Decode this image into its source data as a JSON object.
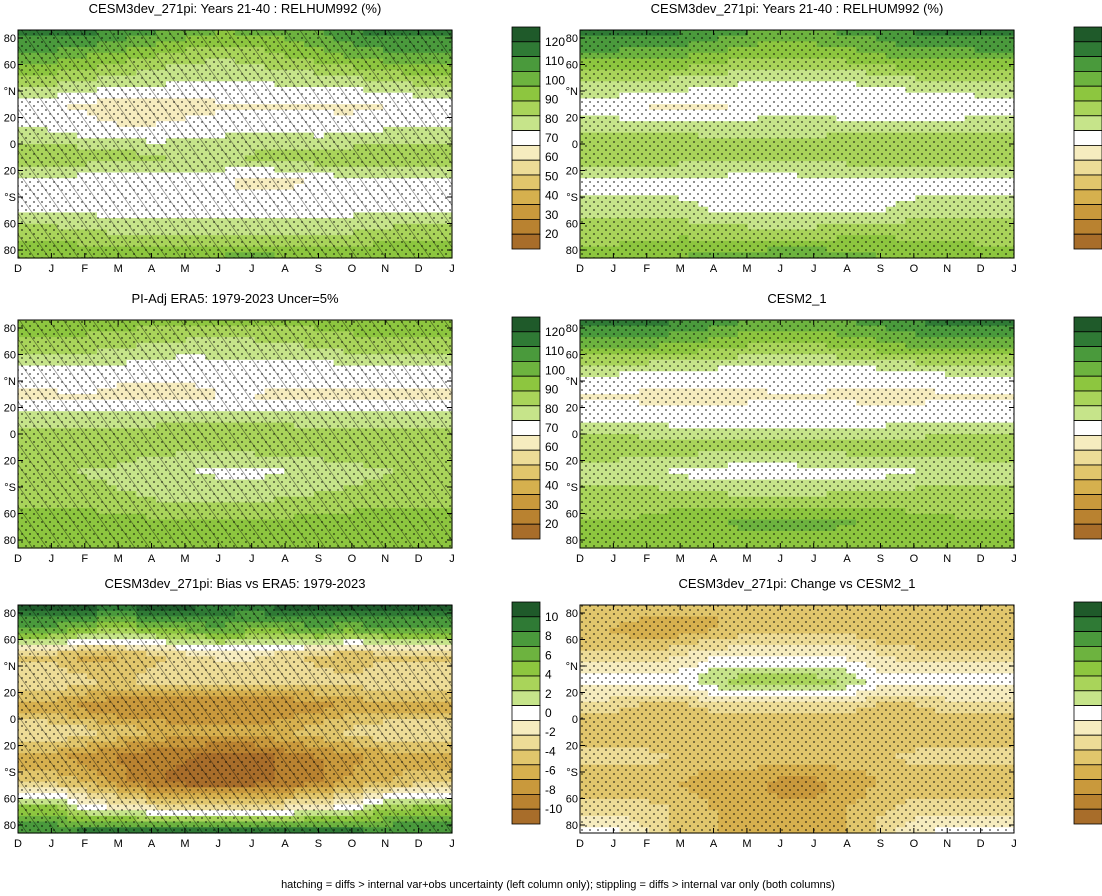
{
  "figure_note": "hatching = diffs > internal var+obs uncertainty (left column only); stippling = diffs > internal var only (both columns)",
  "months": [
    "D",
    "J",
    "F",
    "M",
    "A",
    "M",
    "J",
    "J",
    "A",
    "S",
    "O",
    "N",
    "D",
    "J"
  ],
  "lat_ticks": [
    "80",
    "60",
    "°N",
    "20",
    "0",
    "20",
    "°S",
    "60",
    "80"
  ],
  "colorbars": {
    "abs": {
      "labels": [
        "120",
        "110",
        "100",
        "90",
        "80",
        "70",
        "60",
        "50",
        "40",
        "30",
        "20"
      ],
      "colors": [
        "#1f5a2a",
        "#2f7a35",
        "#4a9a3c",
        "#6db33f",
        "#8dc63f",
        "#a9d45a",
        "#c6e48a",
        "#ffffff",
        "#f6ecbf",
        "#eddc97",
        "#e1c66c",
        "#d6b04e",
        "#c9993c",
        "#b98230",
        "#a86d2a"
      ]
    },
    "diff": {
      "labels": [
        "10",
        "8",
        "6",
        "4",
        "2",
        "0",
        "-2",
        "-4",
        "-6",
        "-8",
        "-10"
      ],
      "colors": [
        "#1f5a2a",
        "#2f7a35",
        "#4a9a3c",
        "#6db33f",
        "#8dc63f",
        "#a9d45a",
        "#c6e48a",
        "#ffffff",
        "#f6ecbf",
        "#eddc97",
        "#e1c66c",
        "#d6b04e",
        "#c9993c",
        "#b98230",
        "#a86d2a"
      ]
    }
  },
  "chart_data": [
    {
      "type": "heatmap",
      "title": "CESM3dev_271pi: Years 21-40 : RELHUM992 (%)",
      "x": [
        "D",
        "J",
        "F",
        "M",
        "A",
        "M",
        "J",
        "J",
        "A",
        "S",
        "O",
        "N",
        "D",
        "J"
      ],
      "y_ticks": [
        "80",
        "60",
        "°N",
        "20",
        "0",
        "20",
        "°S",
        "60",
        "80"
      ],
      "colorbar": "abs",
      "rows": [
        [
          113,
          113,
          112,
          109,
          105,
          100,
          96,
          97,
          99,
          103,
          110,
          113,
          113,
          113
        ],
        [
          100,
          100,
          96,
          92,
          88,
          84,
          82,
          84,
          88,
          92,
          96,
          100,
          100,
          100
        ],
        [
          83,
          83,
          80,
          78,
          76,
          74,
          74,
          74,
          75,
          76,
          78,
          81,
          83,
          83
        ],
        [
          68,
          68,
          65,
          62,
          62,
          63,
          65,
          66,
          66,
          65,
          64,
          66,
          68,
          68
        ],
        [
          75,
          74,
          70,
          68,
          68,
          70,
          72,
          73,
          72,
          71,
          72,
          74,
          75,
          74
        ],
        [
          88,
          88,
          86,
          84,
          82,
          80,
          80,
          82,
          84,
          86,
          86,
          87,
          88,
          88
        ],
        [
          73,
          72,
          68,
          68,
          70,
          70,
          68,
          64,
          64,
          68,
          70,
          72,
          73,
          72
        ],
        [
          72,
          72,
          70,
          70,
          70,
          70,
          70,
          70,
          70,
          70,
          70,
          71,
          72,
          72
        ],
        [
          85,
          84,
          82,
          80,
          79,
          78,
          77,
          77,
          78,
          79,
          81,
          83,
          85,
          84
        ],
        [
          96,
          96,
          95,
          94,
          94,
          95,
          97,
          98,
          97,
          95,
          94,
          95,
          96,
          96
        ]
      ]
    },
    {
      "type": "heatmap",
      "title": "CESM3dev_271pi: Years 21-40 : RELHUM992 (%)",
      "x": [
        "D",
        "J",
        "F",
        "M",
        "A",
        "M",
        "J",
        "J",
        "A",
        "S",
        "O",
        "N",
        "D",
        "J"
      ],
      "y_ticks": [
        "80",
        "60",
        "°N",
        "20",
        "0",
        "20",
        "°S",
        "60",
        "80"
      ],
      "colorbar": "abs",
      "rows": [
        [
          114,
          114,
          113,
          111,
          108,
          104,
          101,
          102,
          104,
          107,
          111,
          113,
          114,
          114
        ],
        [
          99,
          99,
          98,
          96,
          93,
          90,
          88,
          89,
          92,
          95,
          98,
          99,
          99,
          99
        ],
        [
          82,
          82,
          80,
          79,
          77,
          74,
          73,
          73,
          74,
          76,
          79,
          81,
          82,
          82
        ],
        [
          68,
          68,
          66,
          65,
          65,
          67,
          68,
          68,
          67,
          66,
          66,
          67,
          68,
          68
        ],
        [
          80,
          80,
          80,
          80,
          80,
          80,
          80,
          80,
          80,
          80,
          80,
          80,
          80,
          80
        ],
        [
          86,
          86,
          86,
          85,
          84,
          83,
          83,
          84,
          85,
          86,
          86,
          86,
          86,
          86
        ],
        [
          70,
          70,
          70,
          70,
          70,
          70,
          70,
          70,
          70,
          70,
          70,
          70,
          70,
          70
        ],
        [
          78,
          78,
          78,
          76,
          72,
          70,
          70,
          70,
          70,
          72,
          76,
          78,
          78,
          78
        ],
        [
          86,
          86,
          86,
          86,
          85,
          84,
          84,
          84,
          85,
          86,
          86,
          86,
          86,
          86
        ],
        [
          90,
          90,
          92,
          95,
          98,
          100,
          101,
          101,
          99,
          96,
          93,
          91,
          90,
          90
        ]
      ]
    },
    {
      "type": "heatmap",
      "title": "PI-Adj ERA5: 1979-2023 Uncer=5%",
      "x": [
        "D",
        "J",
        "F",
        "M",
        "A",
        "M",
        "J",
        "J",
        "A",
        "S",
        "O",
        "N",
        "D",
        "J"
      ],
      "y_ticks": [
        "80",
        "60",
        "°N",
        "20",
        "0",
        "20",
        "°S",
        "60",
        "80"
      ],
      "colorbar": "abs",
      "rows": [
        [
          92,
          92,
          92,
          92,
          91,
          90,
          90,
          90,
          90,
          91,
          92,
          92,
          92,
          92
        ],
        [
          86,
          86,
          85,
          82,
          80,
          78,
          77,
          78,
          80,
          82,
          85,
          86,
          86,
          86
        ],
        [
          71,
          71,
          72,
          70,
          69,
          68,
          70,
          70,
          69,
          69,
          70,
          71,
          71,
          71
        ],
        [
          65,
          65,
          66,
          64,
          63,
          64,
          66,
          66,
          65,
          65,
          65,
          65,
          65,
          65
        ],
        [
          78,
          78,
          78,
          79,
          80,
          81,
          81,
          81,
          80,
          79,
          78,
          78,
          78,
          78
        ],
        [
          86,
          86,
          86,
          85,
          84,
          83,
          83,
          84,
          85,
          86,
          86,
          86,
          86,
          86
        ],
        [
          82,
          82,
          80,
          79,
          76,
          74,
          72,
          72,
          73,
          75,
          78,
          80,
          82,
          82
        ],
        [
          84,
          84,
          84,
          82,
          80,
          79,
          79,
          79,
          80,
          82,
          83,
          84,
          84,
          84
        ],
        [
          92,
          92,
          92,
          91,
          90,
          90,
          90,
          90,
          90,
          91,
          92,
          92,
          92,
          92
        ],
        [
          90,
          90,
          90,
          90,
          90,
          90,
          90,
          90,
          90,
          90,
          90,
          90,
          90,
          90
        ]
      ]
    },
    {
      "type": "heatmap",
      "title": "CESM2_1",
      "x": [
        "D",
        "J",
        "F",
        "M",
        "A",
        "M",
        "J",
        "J",
        "A",
        "S",
        "O",
        "N",
        "D",
        "J"
      ],
      "y_ticks": [
        "80",
        "60",
        "°N",
        "20",
        "0",
        "20",
        "°S",
        "60",
        "80"
      ],
      "colorbar": "abs",
      "rows": [
        [
          114,
          114,
          113,
          110,
          107,
          103,
          100,
          101,
          103,
          106,
          110,
          113,
          114,
          114
        ],
        [
          97,
          97,
          96,
          94,
          91,
          88,
          86,
          87,
          90,
          93,
          96,
          97,
          97,
          97
        ],
        [
          75,
          75,
          74,
          73,
          72,
          71,
          70,
          70,
          71,
          72,
          74,
          75,
          75,
          75
        ],
        [
          66,
          66,
          64,
          64,
          64,
          65,
          66,
          66,
          65,
          64,
          64,
          65,
          66,
          66
        ],
        [
          73,
          73,
          72,
          71,
          70,
          70,
          71,
          71,
          71,
          71,
          72,
          73,
          73,
          73
        ],
        [
          86,
          86,
          86,
          85,
          84,
          83,
          83,
          84,
          85,
          86,
          86,
          86,
          86,
          86
        ],
        [
          76,
          76,
          75,
          72,
          70,
          70,
          70,
          70,
          70,
          71,
          73,
          75,
          76,
          76
        ],
        [
          85,
          85,
          85,
          84,
          83,
          82,
          82,
          82,
          83,
          84,
          85,
          85,
          85,
          85
        ],
        [
          88,
          88,
          89,
          92,
          94,
          97,
          98,
          98,
          96,
          93,
          90,
          89,
          88,
          88
        ],
        [
          90,
          90,
          90,
          90,
          90,
          90,
          90,
          90,
          90,
          90,
          90,
          90,
          90,
          90
        ]
      ]
    },
    {
      "type": "heatmap",
      "title": "CESM3dev_271pi: Bias vs ERA5: 1979-2023",
      "x": [
        "D",
        "J",
        "F",
        "M",
        "A",
        "M",
        "J",
        "J",
        "A",
        "S",
        "O",
        "N",
        "D",
        "J"
      ],
      "y_ticks": [
        "80",
        "60",
        "°N",
        "20",
        "0",
        "20",
        "°S",
        "60",
        "80"
      ],
      "colorbar": "diff",
      "rows": [
        [
          10,
          10,
          10,
          10,
          10,
          10,
          9,
          9,
          10,
          10,
          10,
          10,
          10,
          10
        ],
        [
          6,
          6,
          4,
          3,
          4,
          5,
          6,
          5,
          5,
          6,
          5,
          6,
          6,
          6
        ],
        [
          -4,
          -4,
          -6,
          -5,
          -4,
          -3,
          -2,
          -2,
          -3,
          -4,
          -5,
          -4,
          -4,
          -4
        ],
        [
          -2,
          -2,
          -3,
          -4,
          -3,
          -3,
          -3,
          -3,
          -3,
          -3,
          -3,
          -2,
          -2,
          -2
        ],
        [
          -6,
          -6,
          -7,
          -8,
          -8,
          -8,
          -8,
          -8,
          -8,
          -7,
          -6,
          -6,
          -6,
          -6
        ],
        [
          -2,
          -2,
          -3,
          -4,
          -5,
          -6,
          -6,
          -6,
          -5,
          -4,
          -3,
          -2,
          -2,
          -2
        ],
        [
          -6,
          -6,
          -7,
          -8,
          -9,
          -9,
          -10,
          -10,
          -9,
          -8,
          -7,
          -6,
          -6,
          -6
        ],
        [
          -4,
          -4,
          -5,
          -7,
          -9,
          -10,
          -10,
          -10,
          -9,
          -8,
          -6,
          -5,
          -4,
          -4
        ],
        [
          4,
          4,
          0,
          -1,
          -2,
          -3,
          -3,
          -3,
          -2,
          -1,
          0,
          3,
          4,
          4
        ],
        [
          8,
          8,
          9,
          10,
          10,
          10,
          10,
          10,
          10,
          10,
          9,
          8,
          8,
          8
        ]
      ]
    },
    {
      "type": "heatmap",
      "title": "CESM3dev_271pi: Change vs CESM2_1",
      "x": [
        "D",
        "J",
        "F",
        "M",
        "A",
        "M",
        "J",
        "J",
        "A",
        "S",
        "O",
        "N",
        "D",
        "J"
      ],
      "y_ticks": [
        "80",
        "60",
        "°N",
        "20",
        "0",
        "20",
        "°S",
        "60",
        "80"
      ],
      "colorbar": "diff",
      "rows": [
        [
          -4,
          -4,
          -4,
          -4,
          -5,
          -5,
          -5,
          -5,
          -5,
          -4,
          -4,
          -4,
          -4,
          -4
        ],
        [
          -5,
          -5,
          -6,
          -6,
          -5,
          -4,
          -4,
          -4,
          -4,
          -5,
          -5,
          -5,
          -5,
          -5
        ],
        [
          -3,
          -3,
          -3,
          -2,
          -1,
          -1,
          -1,
          -1,
          -1,
          -2,
          -3,
          -3,
          -3,
          -3
        ],
        [
          0,
          0,
          0,
          0,
          2,
          3,
          3,
          3,
          2,
          0,
          0,
          0,
          0,
          0
        ],
        [
          -3,
          -3,
          -4,
          -4,
          -3,
          -3,
          -3,
          -3,
          -3,
          -4,
          -4,
          -3,
          -3,
          -3
        ],
        [
          -5,
          -5,
          -5,
          -5,
          -5,
          -5,
          -5,
          -5,
          -5,
          -5,
          -5,
          -5,
          -5,
          -5
        ],
        [
          -3,
          -3,
          -3,
          -4,
          -4,
          -4,
          -4,
          -4,
          -4,
          -4,
          -3,
          -3,
          -3,
          -3
        ],
        [
          -5,
          -5,
          -5,
          -5,
          -6,
          -6,
          -7,
          -7,
          -6,
          -5,
          -5,
          -5,
          -5,
          -5
        ],
        [
          -3,
          -3,
          -3,
          -4,
          -5,
          -6,
          -6,
          -6,
          -5,
          -4,
          -3,
          -3,
          -3,
          -3
        ],
        [
          0,
          0,
          -2,
          -4,
          -5,
          -6,
          -6,
          -6,
          -5,
          -3,
          -1,
          0,
          0,
          0
        ]
      ]
    }
  ]
}
